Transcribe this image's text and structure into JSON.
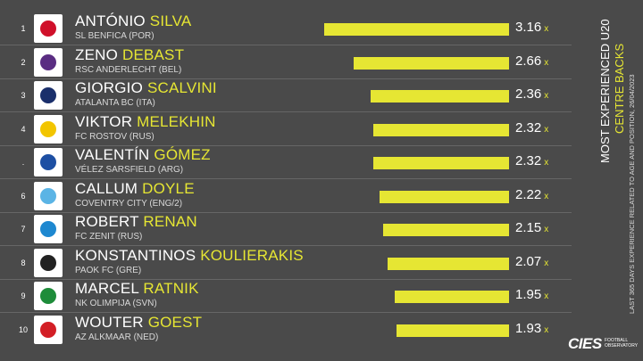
{
  "side": {
    "title": "MOST EXPERIENCED U20",
    "subtitle": "CENTRE BACKS",
    "note": "LAST 365 DAYS EXPERIENCE RELATED TO AGE AND POSITION, 26/04/2023"
  },
  "brand": {
    "logo_text": "CIES",
    "tag_line1": "FOOTBALL",
    "tag_line2": "OBSERVATORY"
  },
  "colors": {
    "background": "#4a4a4a",
    "accent": "#e6e633"
  },
  "unit": "x",
  "chart_data": {
    "type": "bar",
    "orientation": "horizontal",
    "categories": [
      "António Silva",
      "Zeno Debast",
      "Giorgio Scalvini",
      "Viktor Melekhin",
      "Valentín Gómez",
      "Callum Doyle",
      "Robert Renan",
      "Konstantinos Koulierakis",
      "Marcel Ratnik",
      "Wouter Goest"
    ],
    "values": [
      3.16,
      2.66,
      2.36,
      2.32,
      2.32,
      2.22,
      2.15,
      2.07,
      1.95,
      1.93
    ],
    "value_labels": [
      "3.16",
      "2.66",
      "2.36",
      "2.32",
      "2.32",
      "2.22",
      "2.15",
      "2.07",
      "1.95",
      "1.93"
    ],
    "xlim": [
      0,
      3.16
    ],
    "bar_color": "#e6e633"
  },
  "players": [
    {
      "rank": "1",
      "first": "ANTÓNIO",
      "last": "SILVA",
      "club": "SL BENFICA (POR)",
      "logo_color": "#d0102a"
    },
    {
      "rank": "2",
      "first": "ZENO",
      "last": "DEBAST",
      "club": "RSC ANDERLECHT (BEL)",
      "logo_color": "#5a2d82"
    },
    {
      "rank": "3",
      "first": "GIORGIO",
      "last": "SCALVINI",
      "club": "ATALANTA BC (ITA)",
      "logo_color": "#1a2f6b"
    },
    {
      "rank": "4",
      "first": "VIKTOR",
      "last": "MELEKHIN",
      "club": "FC ROSTOV (RUS)",
      "logo_color": "#f2c500"
    },
    {
      "rank": ".",
      "first": "VALENTÍN",
      "last": "GÓMEZ",
      "club": "VÉLEZ SARSFIELD (ARG)",
      "logo_color": "#1d4fa3"
    },
    {
      "rank": "6",
      "first": "CALLUM",
      "last": "DOYLE",
      "club": "COVENTRY CITY (ENG/2)",
      "logo_color": "#5bb4e5"
    },
    {
      "rank": "7",
      "first": "ROBERT",
      "last": "RENAN",
      "club": "FC ZENIT (RUS)",
      "logo_color": "#1e88d0"
    },
    {
      "rank": "8",
      "first": "KONSTANTINOS",
      "last": "KOULIERAKIS",
      "club": "PAOK FC (GRE)",
      "logo_color": "#222222"
    },
    {
      "rank": "9",
      "first": "MARCEL",
      "last": "RATNIK",
      "club": "NK OLIMPIJA (SVN)",
      "logo_color": "#1e8c3a"
    },
    {
      "rank": "10",
      "first": "WOUTER",
      "last": "GOEST",
      "club": "AZ ALKMAAR (NED)",
      "logo_color": "#d31f26"
    }
  ]
}
